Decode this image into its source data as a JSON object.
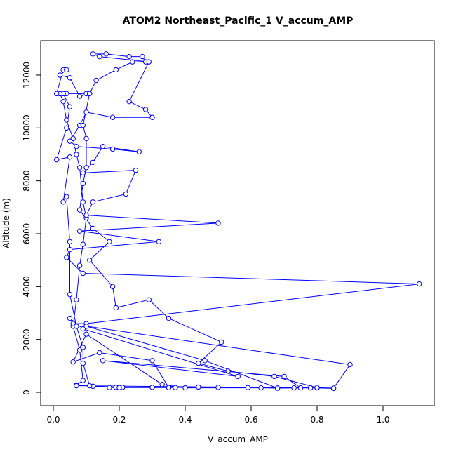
{
  "chart_data": {
    "type": "line",
    "title": "ATOM2 Northeast_Pacific_1 V_accum_AMP",
    "xlabel": "V_accum_AMP",
    "ylabel": "Altitude (m)",
    "x": [
      0.85,
      0.78,
      0.73,
      0.68,
      0.63,
      0.59,
      0.5,
      0.44,
      0.35,
      0.3,
      0.21,
      0.19,
      0.12,
      0.07,
      0.09,
      0.08,
      0.06,
      0.07,
      0.08,
      0.09,
      0.1,
      0.09,
      0.08,
      0.07,
      0.06,
      0.04,
      0.03,
      0.02,
      0.04,
      0.1,
      0.11,
      0.13,
      0.19,
      0.24,
      0.28,
      0.27,
      0.23,
      0.16,
      0.12,
      0.14,
      0.29,
      0.23,
      0.28,
      0.3,
      0.18,
      0.1,
      0.08,
      0.05,
      0.07,
      0.18,
      0.26,
      0.15,
      0.12,
      0.09,
      0.25,
      0.22,
      0.12,
      0.1,
      0.5,
      0.08,
      0.32,
      0.05,
      0.04,
      0.09,
      1.11,
      0.1,
      0.06,
      0.05,
      0.09,
      0.56,
      0.15,
      0.7,
      0.75,
      0.8,
      0.07,
      0.11,
      0.09,
      0.09,
      0.07,
      0.05,
      0.05,
      0.04,
      0.03,
      0.05,
      0.01,
      0.04,
      0.05,
      0.03,
      0.02,
      0.01,
      0.03,
      0.04,
      0.02,
      0.05,
      0.08,
      0.11,
      0.09,
      0.1,
      0.1,
      0.09,
      0.08,
      0.12,
      0.17,
      0.11,
      0.18,
      0.19,
      0.29,
      0.35,
      0.51,
      0.44,
      0.53,
      0.67,
      0.8,
      0.85,
      0.9,
      0.1,
      0.46,
      0.68,
      0.78,
      0.4,
      0.33,
      0.1,
      0.06,
      0.14,
      0.3,
      0.35,
      0.37,
      0.17,
      0.2
    ],
    "values": [
      150,
      170,
      170,
      160,
      170,
      180,
      190,
      200,
      180,
      190,
      190,
      190,
      230,
      280,
      450,
      1600,
      2500,
      3500,
      4800,
      5600,
      6600,
      7200,
      8500,
      9000,
      9600,
      10300,
      11000,
      11300,
      11300,
      11300,
      11300,
      11800,
      12200,
      12500,
      12500,
      12700,
      12700,
      12800,
      12800,
      12700,
      12500,
      11000,
      10700,
      10400,
      10400,
      10600,
      10100,
      9500,
      9300,
      9200,
      9100,
      9300,
      8700,
      8300,
      8400,
      7500,
      7200,
      6700,
      6400,
      6100,
      5700,
      5400,
      5100,
      4500,
      4100,
      2600,
      2600,
      2800,
      2400,
      600,
      1200,
      600,
      170,
      170,
      250,
      250,
      1100,
      1700,
      2500,
      3700,
      5700,
      7400,
      7200,
      8900,
      8800,
      10000,
      10800,
      11300,
      11300,
      11300,
      12200,
      12200,
      12000,
      11900,
      11200,
      11300,
      10100,
      9600,
      8500,
      7900,
      6900,
      6200,
      5700,
      5000,
      4000,
      3200,
      3500,
      2800,
      1900,
      1100,
      800,
      600,
      180,
      160,
      1050,
      2500,
      1200,
      160,
      170,
      170,
      300,
      2200,
      1150,
      1500,
      1200,
      180,
      180,
      180,
      180
    ],
    "color": "#0000ff",
    "xlim": [
      -0.0383,
      1.1553
    ],
    "ylim": [
      -504,
      13300
    ],
    "xticks": [
      {
        "value": 0,
        "label": "0.0"
      },
      0.2,
      0.4,
      0.6,
      0.8,
      {
        "value": 1,
        "label": "1.0"
      }
    ],
    "yticks": [
      0,
      2000,
      4000,
      6000,
      8000,
      10000,
      12000
    ]
  }
}
